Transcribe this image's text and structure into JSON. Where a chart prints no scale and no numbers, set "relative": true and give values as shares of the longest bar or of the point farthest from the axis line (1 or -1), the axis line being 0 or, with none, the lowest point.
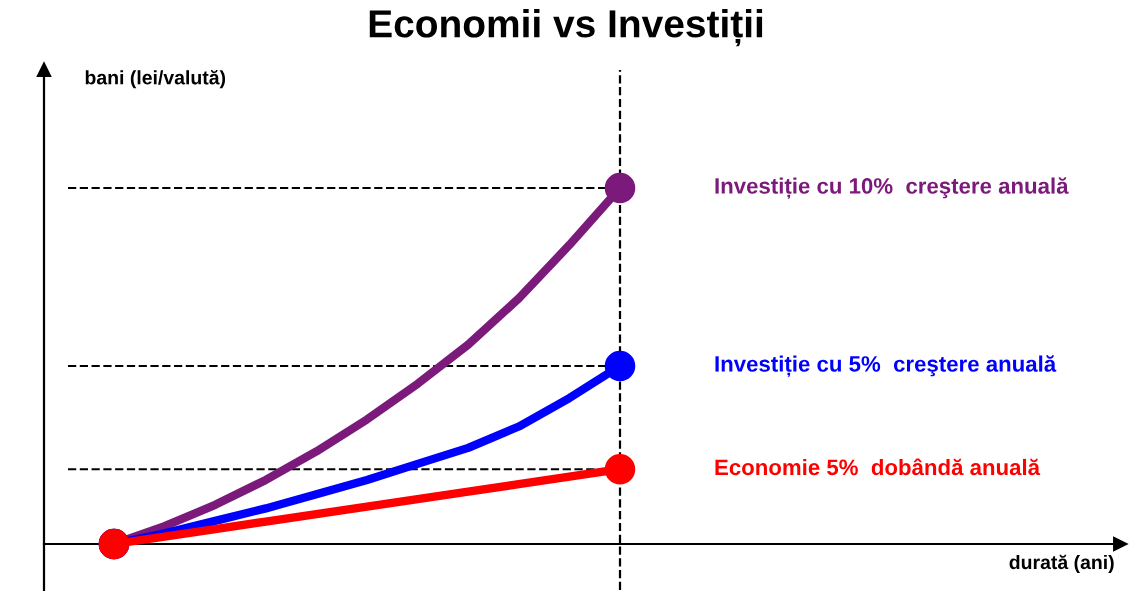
{
  "chart_data": {
    "type": "line",
    "title": "Economii vs Investiții",
    "annotations": [
      "bani (lei/valută)",
      "durată (ani)"
    ],
    "relative": true,
    "categories": [
      null,
      null,
      null,
      null,
      null,
      null,
      null,
      null,
      null,
      null,
      null
    ],
    "series": [
      {
        "name": "Investiție cu 10%  creştere anuală",
        "color": "#7b1a7b",
        "values": [
          0,
          0.05,
          0.11,
          0.18,
          0.26,
          0.35,
          0.45,
          0.56,
          0.69,
          0.84,
          1
        ]
      },
      {
        "name": "Investiție cu 5%  creştere anuală",
        "color": "#0000ff",
        "values": [
          0,
          0.03,
          0.065,
          0.1,
          0.14,
          0.18,
          0.225,
          0.27,
          0.33,
          0.41,
          0.5
        ]
      },
      {
        "name": "Economie 5%  dobândă anuală",
        "color": "#ff0000",
        "values": [
          0,
          0.021,
          0.042,
          0.063,
          0.084,
          0.105,
          0.126,
          0.147,
          0.168,
          0.189,
          0.21
        ]
      }
    ],
    "ref_lines": [
      {
        "axis": "y",
        "value": 1,
        "color": "#000000",
        "line_style": "dashed"
      },
      {
        "axis": "y",
        "value": 0.5,
        "color": "#000000",
        "line_style": "dashed"
      },
      {
        "axis": "y",
        "value": 0.21,
        "color": "#000000",
        "line_style": "dashed"
      }
    ],
    "line_style": "solid",
    "legend": false
  }
}
